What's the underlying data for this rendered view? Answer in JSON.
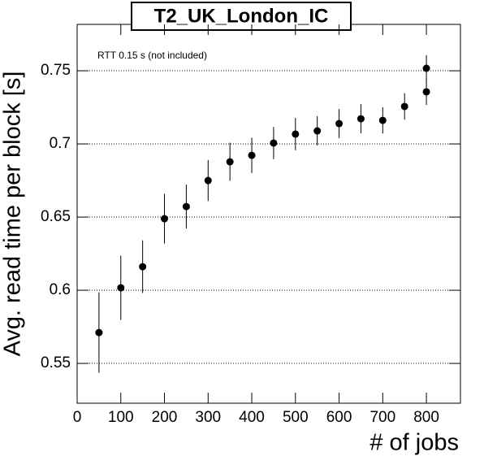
{
  "chart_data": {
    "type": "errorbar",
    "title": "T2_UK_London_IC",
    "annotation": "RTT 0.15 s (not included)",
    "x_label": "# of jobs",
    "y_label": "Avg. read time per block [s]",
    "x": [
      50,
      100,
      150,
      200,
      250,
      300,
      350,
      400,
      450,
      500,
      550,
      600,
      650,
      700,
      750,
      800,
      800
    ],
    "values": [
      0.5711,
      0.6017,
      0.6161,
      0.6489,
      0.6572,
      0.675,
      0.6878,
      0.6922,
      0.7006,
      0.7067,
      0.7089,
      0.7139,
      0.7172,
      0.7161,
      0.7256,
      0.7517,
      0.7356
    ],
    "errors": [
      0.0275,
      0.022,
      0.018,
      0.017,
      0.015,
      0.014,
      0.013,
      0.012,
      0.011,
      0.011,
      0.01,
      0.01,
      0.01,
      0.009,
      0.009,
      0.009,
      0.009
    ],
    "color": "#000000",
    "xlim": [
      0,
      878
    ],
    "ylim": [
      0.5228,
      0.7817
    ],
    "xticks": [
      0,
      100,
      200,
      300,
      400,
      500,
      600,
      700,
      800
    ],
    "yticks": [
      0.55,
      0.6,
      0.65,
      0.7,
      0.75
    ],
    "grid": true
  }
}
